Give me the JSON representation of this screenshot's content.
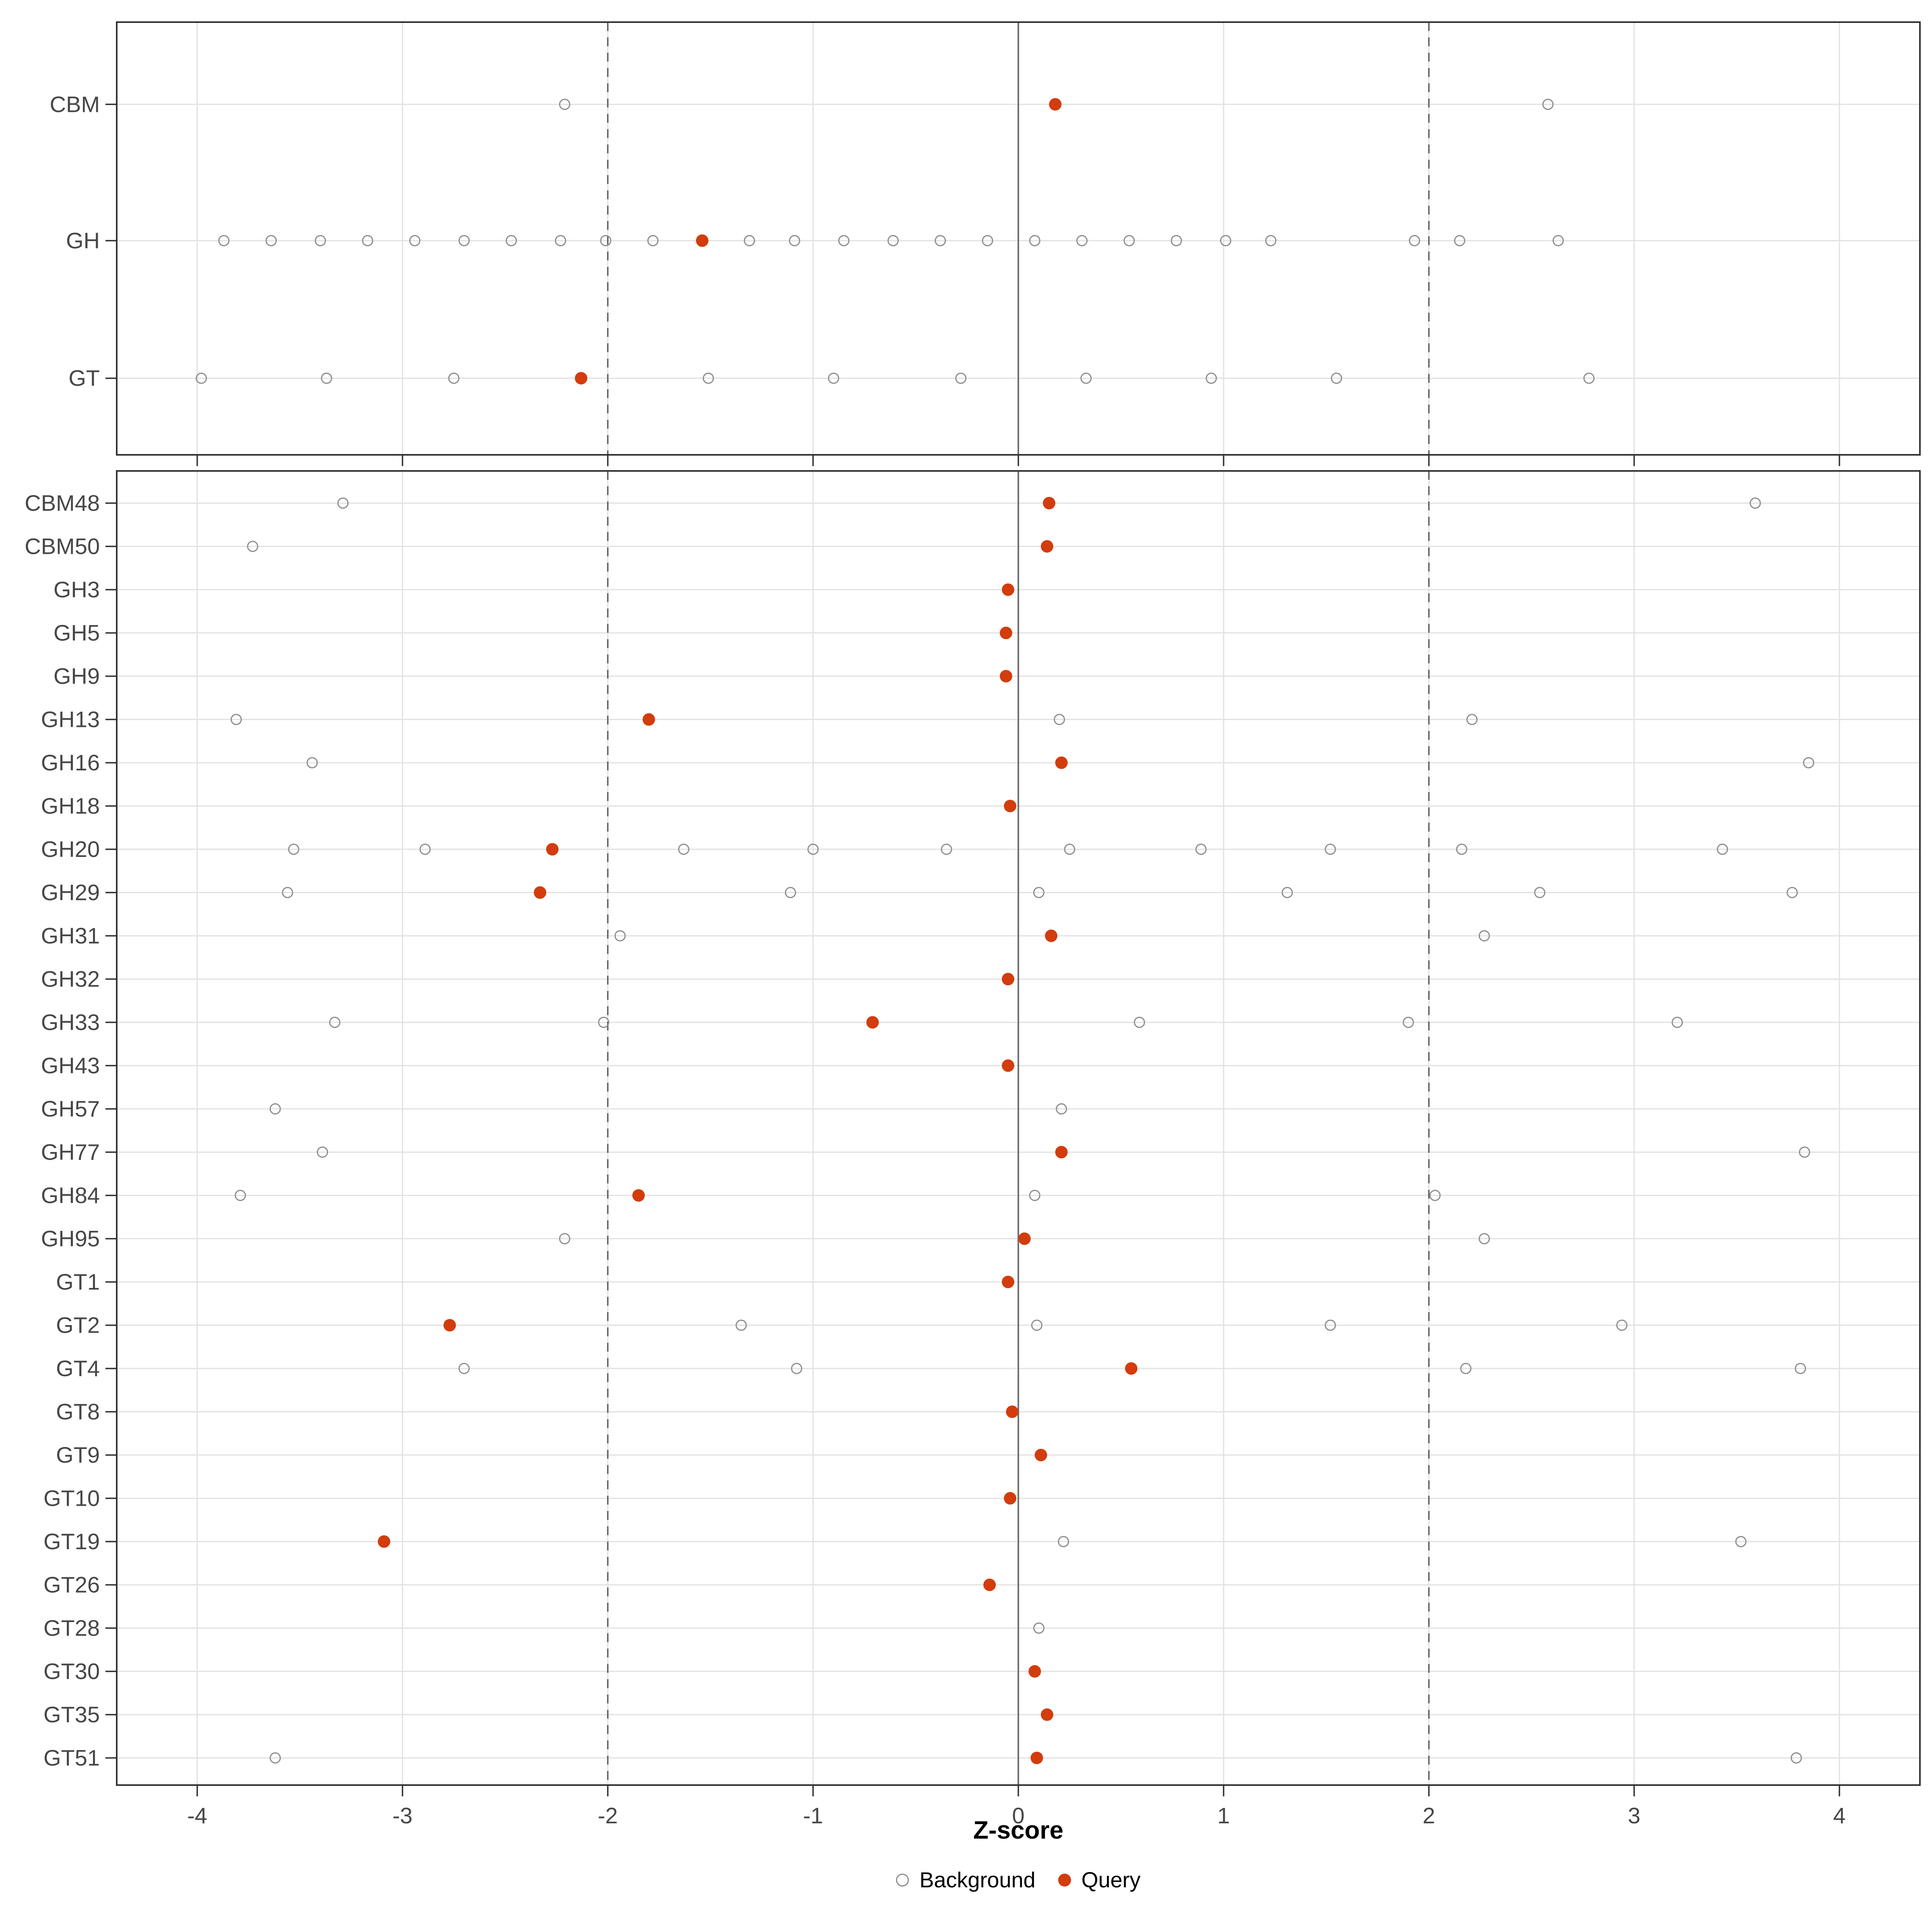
{
  "chart_data": {
    "type": "scatter",
    "title": "",
    "xlabel": "Z-score",
    "ylabel": "",
    "x_ticks": [
      -4,
      -3,
      -2,
      -1,
      0,
      1,
      2,
      3,
      4
    ],
    "x_range": [
      -4.35,
      4.35
    ],
    "grid": "major-vertical-and-row-lines",
    "reference_lines": {
      "solid_at": 0,
      "dashed_at": [
        -2,
        2
      ]
    },
    "legend": {
      "position": "bottom-center",
      "items": [
        {
          "label": "Background",
          "marker": "open-circle"
        },
        {
          "label": "Query",
          "marker": "filled-circle"
        }
      ]
    },
    "panels": [
      {
        "id": "summary",
        "rows": [
          {
            "label": "CBM",
            "background": [
              -2.21,
              2.58
            ],
            "query": 0.18
          },
          {
            "label": "GH",
            "background": [
              -3.87,
              -3.64,
              -3.4,
              -3.17,
              -2.94,
              -2.7,
              -2.47,
              -2.23,
              -2.01,
              -1.78,
              -1.31,
              -1.09,
              -0.85,
              -0.61,
              -0.38,
              -0.15,
              0.08,
              0.31,
              0.54,
              0.77,
              1.01,
              1.23,
              1.93,
              2.15,
              2.63
            ],
            "query": -1.54
          },
          {
            "label": "GT",
            "background": [
              -3.98,
              -3.37,
              -2.75,
              -1.51,
              -0.9,
              -0.28,
              0.33,
              0.94,
              1.55,
              2.78
            ],
            "query": -2.13
          }
        ]
      },
      {
        "id": "families",
        "rows": [
          {
            "label": "CBM48",
            "background": [
              -3.29,
              3.59
            ],
            "query": 0.15
          },
          {
            "label": "CBM50",
            "background": [
              -3.73
            ],
            "query": 0.14
          },
          {
            "label": "GH3",
            "background": [],
            "query": -0.05
          },
          {
            "label": "GH5",
            "background": [],
            "query": -0.06
          },
          {
            "label": "GH9",
            "background": [],
            "query": -0.06
          },
          {
            "label": "GH13",
            "background": [
              -3.81,
              0.2,
              2.21
            ],
            "query": -1.8
          },
          {
            "label": "GH16",
            "background": [
              -3.44,
              3.85
            ],
            "query": 0.21
          },
          {
            "label": "GH18",
            "background": [],
            "query": -0.04
          },
          {
            "label": "GH20",
            "background": [
              -3.53,
              -2.89,
              -1.63,
              -1.0,
              -0.35,
              0.25,
              0.89,
              1.52,
              2.16,
              3.43
            ],
            "query": -2.27
          },
          {
            "label": "GH29",
            "background": [
              -3.56,
              -1.11,
              0.1,
              1.31,
              2.54,
              3.77
            ],
            "query": -2.33
          },
          {
            "label": "GH31",
            "background": [
              -1.94,
              2.27
            ],
            "query": 0.16
          },
          {
            "label": "GH32",
            "background": [],
            "query": -0.05
          },
          {
            "label": "GH33",
            "background": [
              -3.33,
              -2.02,
              0.59,
              1.9,
              3.21
            ],
            "query": -0.71
          },
          {
            "label": "GH43",
            "background": [],
            "query": -0.05
          },
          {
            "label": "GH57",
            "background": [
              -3.62,
              0.21
            ],
            "query": null
          },
          {
            "label": "GH77",
            "background": [
              -3.39,
              3.83
            ],
            "query": 0.21
          },
          {
            "label": "GH84",
            "background": [
              -3.79,
              0.08,
              2.03
            ],
            "query": -1.85
          },
          {
            "label": "GH95",
            "background": [
              -2.21,
              2.27
            ],
            "query": 0.03
          },
          {
            "label": "GT1",
            "background": [],
            "query": -0.05
          },
          {
            "label": "GT2",
            "background": [
              -1.35,
              0.09,
              1.52,
              2.94
            ],
            "query": -2.77
          },
          {
            "label": "GT4",
            "background": [
              -2.7,
              -1.08,
              2.18,
              3.81
            ],
            "query": 0.55
          },
          {
            "label": "GT8",
            "background": [],
            "query": -0.03
          },
          {
            "label": "GT9",
            "background": [],
            "query": 0.11
          },
          {
            "label": "GT10",
            "background": [],
            "query": -0.04
          },
          {
            "label": "GT19",
            "background": [
              0.22,
              3.52
            ],
            "query": -3.09
          },
          {
            "label": "GT26",
            "background": [],
            "query": -0.14
          },
          {
            "label": "GT28",
            "background": [
              0.1
            ],
            "query": null
          },
          {
            "label": "GT30",
            "background": [],
            "query": 0.08
          },
          {
            "label": "GT35",
            "background": [],
            "query": 0.14
          },
          {
            "label": "GT51",
            "background": [
              -3.62,
              3.79
            ],
            "query": 0.09
          }
        ]
      }
    ]
  },
  "colors": {
    "query": "#D33C0C",
    "background_stroke": "#8F8F8F",
    "grid": "#E2E2E2",
    "dashed_line": "#5E5E5E",
    "zero_line": "#707070",
    "panel_border": "#333333",
    "axis_text": "#474747",
    "tick": "#333333"
  }
}
